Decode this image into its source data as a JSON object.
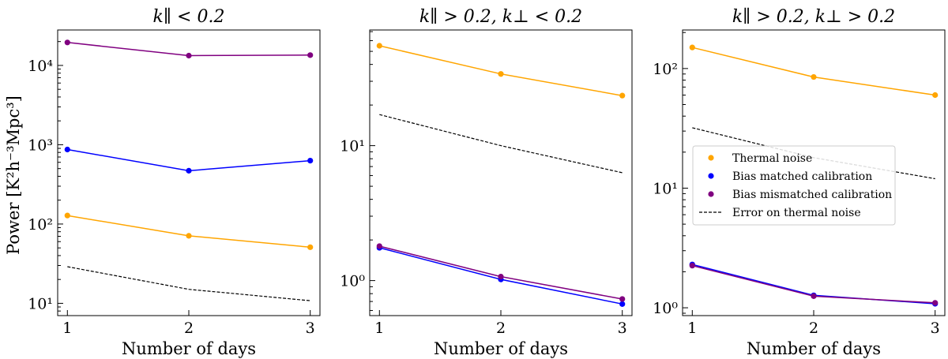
{
  "y_axis_label": "Power [K²h⁻³Mpc³]",
  "x_axis_label": "Number of days",
  "legend": {
    "entries": [
      {
        "label": "Thermal noise",
        "color": "#ffa500",
        "style": "dot"
      },
      {
        "label": "Bias matched calibration",
        "color": "#0000ff",
        "style": "dot"
      },
      {
        "label": "Bias mismatched calibration",
        "color": "#800080",
        "style": "dot"
      },
      {
        "label": "Error on thermal noise",
        "color": "#000000",
        "style": "dashed"
      }
    ]
  },
  "chart_data": [
    {
      "type": "line",
      "title": "k∥ < 0.2",
      "xlabel": "Number of days",
      "ylabel": "Power [K²h⁻³Mpc³]",
      "yscale": "log",
      "ylim": [
        7,
        28000
      ],
      "xlim": [
        0.92,
        3.08
      ],
      "x": [
        1,
        2,
        3
      ],
      "xticks": [
        {
          "v": 1,
          "label": "1"
        },
        {
          "v": 2,
          "label": "2"
        },
        {
          "v": 3,
          "label": "3"
        }
      ],
      "yticks": [
        {
          "v": 10,
          "label": "10¹"
        },
        {
          "v": 100,
          "label": "10²"
        },
        {
          "v": 1000,
          "label": "10³"
        },
        {
          "v": 10000,
          "label": "10⁴"
        }
      ],
      "series": [
        {
          "name": "Thermal noise",
          "color": "#ffa500",
          "values": [
            128,
            71,
            51
          ],
          "markers": true
        },
        {
          "name": "Bias matched calibration",
          "color": "#0000ff",
          "values": [
            870,
            470,
            630
          ],
          "markers": true
        },
        {
          "name": "Bias mismatched calibration",
          "color": "#800080",
          "values": [
            19500,
            13300,
            13500
          ],
          "markers": true
        },
        {
          "name": "Error on thermal noise",
          "color": "#000000",
          "values": [
            29,
            15,
            10.8
          ],
          "dashed": true
        }
      ]
    },
    {
      "type": "line",
      "title": "k∥ > 0.2, k⊥ < 0.2",
      "xlabel": "Number of days",
      "yscale": "log",
      "ylim": [
        0.55,
        72
      ],
      "xlim": [
        0.92,
        3.08
      ],
      "x": [
        1,
        2,
        3
      ],
      "xticks": [
        {
          "v": 1,
          "label": "1"
        },
        {
          "v": 2,
          "label": "2"
        },
        {
          "v": 3,
          "label": "3"
        }
      ],
      "yticks": [
        {
          "v": 1,
          "label": "10⁰"
        },
        {
          "v": 10,
          "label": "10¹"
        }
      ],
      "series": [
        {
          "name": "Thermal noise",
          "color": "#ffa500",
          "values": [
            55,
            34,
            23.5
          ],
          "markers": true
        },
        {
          "name": "Bias matched calibration",
          "color": "#0000ff",
          "values": [
            1.75,
            1.02,
            0.67
          ],
          "markers": true
        },
        {
          "name": "Bias mismatched calibration",
          "color": "#800080",
          "values": [
            1.8,
            1.07,
            0.73
          ],
          "markers": true
        },
        {
          "name": "Error on thermal noise",
          "color": "#000000",
          "values": [
            17,
            10,
            6.3
          ],
          "dashed": true
        }
      ]
    },
    {
      "type": "line",
      "title": "k∥ > 0.2, k⊥ > 0.2",
      "xlabel": "Number of days",
      "yscale": "log",
      "ylim": [
        0.86,
        210
      ],
      "xlim": [
        0.92,
        3.08
      ],
      "x": [
        1,
        2,
        3
      ],
      "xticks": [
        {
          "v": 1,
          "label": "1"
        },
        {
          "v": 2,
          "label": "2"
        },
        {
          "v": 3,
          "label": "3"
        }
      ],
      "yticks": [
        {
          "v": 1,
          "label": "10⁰"
        },
        {
          "v": 10,
          "label": "10¹"
        },
        {
          "v": 100,
          "label": "10²"
        }
      ],
      "legend_location": "center-right",
      "series": [
        {
          "name": "Thermal noise",
          "color": "#ffa500",
          "values": [
            150,
            85,
            60
          ],
          "markers": true
        },
        {
          "name": "Bias matched calibration",
          "color": "#0000ff",
          "values": [
            2.3,
            1.27,
            1.08
          ],
          "markers": true
        },
        {
          "name": "Bias mismatched calibration",
          "color": "#800080",
          "values": [
            2.25,
            1.25,
            1.1
          ],
          "markers": true
        },
        {
          "name": "Error on thermal noise",
          "color": "#000000",
          "values": [
            32,
            18,
            12
          ],
          "dashed": true
        }
      ]
    }
  ]
}
